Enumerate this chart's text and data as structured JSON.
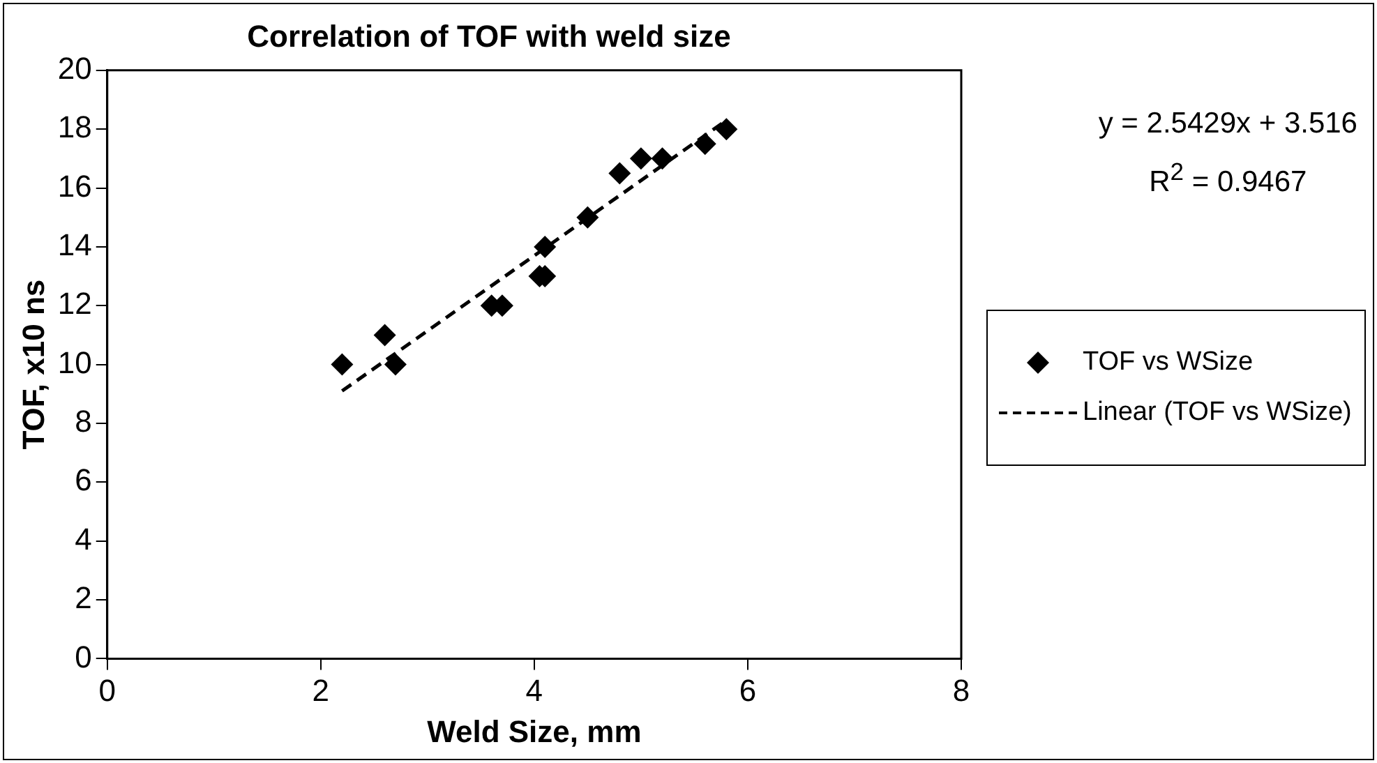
{
  "chart_data": {
    "type": "scatter",
    "title": "Correlation of TOF with weld size",
    "xlabel": "Weld Size, mm",
    "ylabel": "TOF, x10 ns",
    "xlim": [
      0,
      8
    ],
    "xticks": [
      0,
      2,
      4,
      6,
      8
    ],
    "ylim": [
      0,
      20
    ],
    "yticks": [
      0,
      2,
      4,
      6,
      8,
      10,
      12,
      14,
      16,
      18,
      20
    ],
    "grid": false,
    "legend": "right",
    "marker": "diamond",
    "annotations": [
      "y = 2.5429x + 3.516",
      "R$^{2}$ = 0.9467"
    ],
    "series": [
      {
        "name": "TOF vs WSize",
        "color": "#000000",
        "x": [
          2.2,
          2.6,
          2.7,
          3.6,
          3.7,
          4.05,
          4.1,
          4.1,
          4.5,
          4.8,
          5.0,
          5.2,
          5.6,
          5.8
        ],
        "values": [
          10,
          11,
          10,
          12,
          12,
          13,
          13,
          14,
          15,
          16.5,
          17,
          17,
          17.5,
          18
        ]
      },
      {
        "name": "Linear (TOF vs WSize)",
        "type": "line",
        "color": "#000000",
        "line_style": "dashed",
        "marker": "none",
        "x": [
          2.2,
          5.8
        ],
        "values": [
          9.1,
          18.3
        ]
      }
    ]
  }
}
